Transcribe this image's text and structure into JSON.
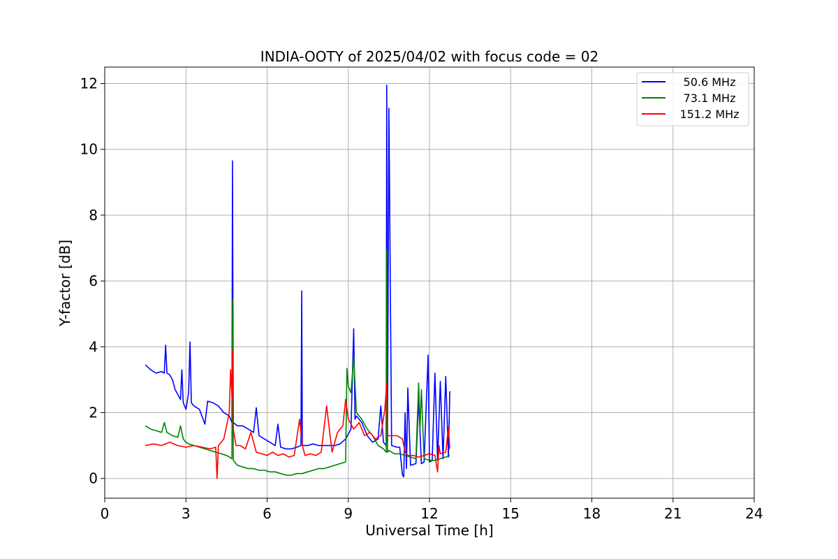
{
  "chart_data": {
    "type": "line",
    "title": "INDIA-OOTY of 2025/04/02 with focus code = 02",
    "xlabel": "Universal Time [h]",
    "ylabel": "Y-factor [dB]",
    "xlim": [
      0,
      24
    ],
    "ylim": [
      -0.6,
      12.5
    ],
    "xticks": [
      0,
      3,
      6,
      9,
      12,
      15,
      18,
      21,
      24
    ],
    "yticks": [
      0,
      2,
      4,
      6,
      8,
      10,
      12
    ],
    "grid": true,
    "legend_position": "top-right",
    "series": [
      {
        "name": "50.6 MHz",
        "color": "#0000ff",
        "x": [
          1.5,
          1.7,
          1.9,
          2.1,
          2.2,
          2.25,
          2.3,
          2.4,
          2.5,
          2.6,
          2.8,
          2.85,
          2.9,
          3.0,
          3.1,
          3.15,
          3.2,
          3.3,
          3.5,
          3.7,
          3.8,
          4.0,
          4.2,
          4.4,
          4.6,
          4.7,
          4.72,
          4.75,
          4.9,
          5.1,
          5.3,
          5.5,
          5.6,
          5.7,
          5.9,
          6.1,
          6.3,
          6.4,
          6.5,
          6.7,
          6.9,
          7.1,
          7.25,
          7.28,
          7.3,
          7.5,
          7.7,
          7.9,
          8.1,
          8.3,
          8.5,
          8.7,
          8.9,
          9.1,
          9.2,
          9.25,
          9.3,
          9.5,
          9.7,
          9.9,
          10.1,
          10.2,
          10.3,
          10.4,
          10.42,
          10.45,
          10.5,
          10.6,
          10.8,
          10.9,
          11.0,
          11.05,
          11.1,
          11.15,
          11.2,
          11.3,
          11.5,
          11.6,
          11.7,
          11.8,
          11.95,
          12.0,
          12.1,
          12.2,
          12.3,
          12.4,
          12.5,
          12.6,
          12.7,
          12.75
        ],
        "values": [
          3.45,
          3.3,
          3.2,
          3.25,
          3.2,
          4.05,
          3.2,
          3.15,
          3.0,
          2.7,
          2.4,
          3.3,
          2.3,
          2.1,
          2.6,
          4.15,
          2.3,
          2.2,
          2.1,
          1.65,
          2.35,
          2.3,
          2.2,
          2.0,
          1.9,
          1.7,
          9.65,
          1.7,
          1.6,
          1.6,
          1.5,
          1.4,
          2.15,
          1.3,
          1.2,
          1.1,
          1.0,
          1.65,
          0.95,
          0.9,
          0.9,
          0.95,
          1.0,
          5.7,
          1.0,
          1.0,
          1.05,
          1.0,
          1.0,
          1.0,
          1.0,
          1.05,
          1.2,
          1.5,
          4.55,
          1.8,
          1.9,
          1.7,
          1.3,
          1.1,
          1.2,
          2.2,
          1.1,
          1.0,
          11.95,
          1.1,
          11.25,
          1.0,
          0.95,
          0.95,
          0.1,
          0.05,
          2.0,
          0.3,
          2.75,
          0.4,
          0.45,
          2.4,
          0.45,
          0.5,
          3.75,
          0.5,
          0.55,
          3.2,
          0.55,
          2.95,
          0.6,
          3.1,
          0.65,
          2.65
        ]
      },
      {
        "name": "73.1 MHz",
        "color": "#008000",
        "x": [
          1.5,
          1.7,
          1.9,
          2.1,
          2.2,
          2.3,
          2.5,
          2.7,
          2.8,
          2.9,
          3.0,
          3.1,
          3.3,
          3.5,
          3.7,
          3.9,
          4.1,
          4.3,
          4.5,
          4.6,
          4.7,
          4.72,
          4.75,
          4.9,
          5.1,
          5.3,
          5.5,
          5.7,
          5.9,
          6.1,
          6.3,
          6.5,
          6.7,
          6.9,
          7.1,
          7.3,
          7.5,
          7.7,
          7.9,
          8.1,
          8.3,
          8.5,
          8.7,
          8.9,
          8.95,
          9.0,
          9.1,
          9.2,
          9.3,
          9.5,
          9.7,
          9.9,
          10.1,
          10.3,
          10.4,
          10.42,
          10.45,
          10.5,
          10.7,
          10.9,
          11.1,
          11.3,
          11.5,
          11.6,
          11.65,
          11.7,
          11.8,
          12.0,
          12.2,
          12.4,
          12.6,
          12.75
        ],
        "values": [
          1.6,
          1.5,
          1.45,
          1.4,
          1.7,
          1.4,
          1.3,
          1.25,
          1.6,
          1.2,
          1.1,
          1.05,
          1.0,
          0.95,
          0.9,
          0.85,
          0.8,
          0.75,
          0.7,
          0.65,
          0.6,
          5.45,
          0.55,
          0.4,
          0.35,
          0.3,
          0.3,
          0.25,
          0.25,
          0.2,
          0.2,
          0.15,
          0.1,
          0.1,
          0.15,
          0.15,
          0.2,
          0.25,
          0.3,
          0.3,
          0.35,
          0.4,
          0.45,
          0.5,
          3.35,
          2.8,
          2.6,
          3.7,
          2.0,
          1.8,
          1.5,
          1.3,
          1.0,
          0.9,
          0.8,
          6.95,
          0.8,
          0.85,
          0.75,
          0.75,
          0.7,
          0.65,
          0.6,
          2.9,
          1.5,
          2.7,
          0.6,
          0.55,
          0.55,
          0.6,
          0.65,
          0.7
        ]
      },
      {
        "name": "151.2 MHz",
        "color": "#ff0000",
        "x": [
          1.5,
          1.8,
          2.1,
          2.4,
          2.7,
          3.0,
          3.3,
          3.6,
          3.9,
          4.1,
          4.15,
          4.2,
          4.4,
          4.6,
          4.65,
          4.7,
          4.72,
          4.75,
          4.85,
          5.0,
          5.2,
          5.4,
          5.6,
          5.8,
          6.0,
          6.2,
          6.4,
          6.6,
          6.8,
          7.0,
          7.2,
          7.3,
          7.4,
          7.6,
          7.8,
          8.0,
          8.2,
          8.4,
          8.6,
          8.8,
          8.9,
          9.0,
          9.2,
          9.4,
          9.6,
          9.8,
          10.0,
          10.2,
          10.35,
          10.42,
          10.45,
          10.55,
          10.8,
          11.0,
          11.1,
          11.2,
          11.4,
          11.6,
          11.8,
          12.0,
          12.2,
          12.3,
          12.35,
          12.4,
          12.6,
          12.7,
          12.75
        ],
        "values": [
          1.0,
          1.05,
          1.0,
          1.1,
          1.0,
          0.95,
          1.0,
          0.95,
          0.9,
          0.95,
          0.0,
          1.0,
          1.2,
          2.0,
          3.3,
          2.5,
          3.9,
          1.5,
          1.0,
          1.0,
          0.9,
          1.4,
          0.8,
          0.75,
          0.7,
          0.8,
          0.7,
          0.75,
          0.65,
          0.7,
          1.8,
          1.0,
          0.7,
          0.75,
          0.7,
          0.8,
          2.2,
          0.8,
          1.4,
          1.6,
          2.4,
          1.8,
          1.5,
          1.7,
          1.3,
          1.4,
          1.2,
          1.3,
          2.1,
          2.9,
          1.3,
          1.3,
          1.3,
          1.2,
          0.8,
          0.7,
          0.7,
          0.65,
          0.7,
          0.75,
          0.7,
          0.2,
          1.0,
          0.75,
          0.8,
          1.55,
          0.9
        ]
      }
    ]
  }
}
